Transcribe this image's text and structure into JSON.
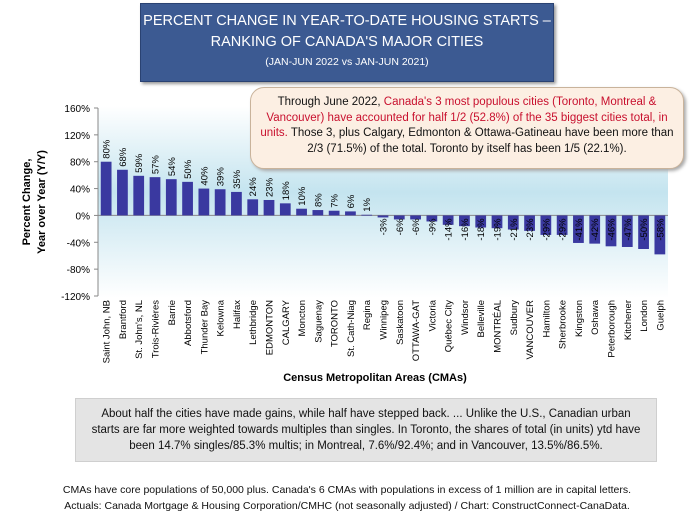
{
  "header": {
    "title_line1": "PERCENT CHANGE IN YEAR-TO-DATE HOUSING STARTS –",
    "title_line2": "RANKING OF CANADA'S MAJOR CITIES",
    "title_line3": "(JAN-JUN 2022 vs JAN-JUN 2021)"
  },
  "callout": {
    "part1": "Through June 2022, ",
    "highlight": "Canada's 3 most populous cities (Toronto, Montreal & Vancouver) have accounted for half 1/2 (52.8%) of the 35 biggest cities total, in units.",
    "part2": " Those 3, plus Calgary, Edmonton & Ottawa-Gatineau have been more than 2/3 (71.5%) of the total. Toronto by itself has been 1/5 (22.1%)."
  },
  "bottom_box": {
    "text": "About half the cities have made gains, while half have stepped back. ... Unlike the U.S., Canadian urban starts are far more weighted towards multiples than singles. In Toronto, the shares of total (in units) ytd have been 14.7% singles/85.3% multis; in Montreal, 7.6%/92.4%; and in Vancouver, 13.5%/86.5%."
  },
  "footnote": {
    "line1": "CMAs have core populations of 50,000 plus. Canada's 6 CMAs with populations in excess of 1 million are in capital letters.",
    "line2": "Actuals: Canada Mortgage & Housing Corporation/CMHC (not seasonally adjusted) / Chart: ConstructConnect-CanaData."
  },
  "chart_data": {
    "type": "bar",
    "xlabel": "Census Metropolitan Areas (CMAs)",
    "ylabel": "Percent Change, Year over Year (Y/Y)",
    "ylim": [
      -120,
      160
    ],
    "yticks": [
      "160%",
      "120%",
      "80%",
      "40%",
      "0%",
      "-40%",
      "-80%",
      "-120%"
    ],
    "ytick_values": [
      160,
      120,
      80,
      40,
      0,
      -40,
      -80,
      -120
    ],
    "categories": [
      "Saint John, NB",
      "Brantford",
      "St. John's, NL",
      "Trois-Rivières",
      "Barrie",
      "Abbotsford",
      "Thunder Bay",
      "Kelowna",
      "Halifax",
      "Lethbridge",
      "EDMONTON",
      "CALGARY",
      "Moncton",
      "Saguenay",
      "TORONTO",
      "St. Cath-Niag",
      "Regina",
      "Winnipeg",
      "Saskatoon",
      "OTTAWA-GAT",
      "Victoria",
      "Québec City",
      "Windsor",
      "Belleville",
      "MONTRÉAL",
      "Sudbury",
      "VANCOUVER",
      "Hamilton",
      "Sherbrooke",
      "Kingston",
      "Oshawa",
      "Peterborough",
      "Kitchener",
      "London",
      "Guelph"
    ],
    "values": [
      80,
      68,
      59,
      57,
      54,
      50,
      40,
      39,
      35,
      24,
      23,
      18,
      10,
      8,
      7,
      6,
      1,
      -3,
      -6,
      -6,
      -9,
      -14,
      -16,
      -18,
      -19,
      -21,
      -23,
      -29,
      -29,
      -41,
      -42,
      -46,
      -47,
      -50,
      -58
    ],
    "labels": [
      "80%",
      "68%",
      "59%",
      "57%",
      "54%",
      "50%",
      "40%",
      "39%",
      "35%",
      "24%",
      "23%",
      "18%",
      "10%",
      "8%",
      "7%",
      "6%",
      "1%",
      "-3%",
      "-6%",
      "-6%",
      "-9%",
      "-14%",
      "-16%",
      "-18%",
      "-19%",
      "-21%",
      "-23%",
      "-29%",
      "-29%",
      "-41%",
      "-42%",
      "-46%",
      "-47%",
      "-50%",
      "-58%"
    ],
    "bar_color": "#3a39a0",
    "plot_background": "gradient light blue",
    "grid": false
  }
}
